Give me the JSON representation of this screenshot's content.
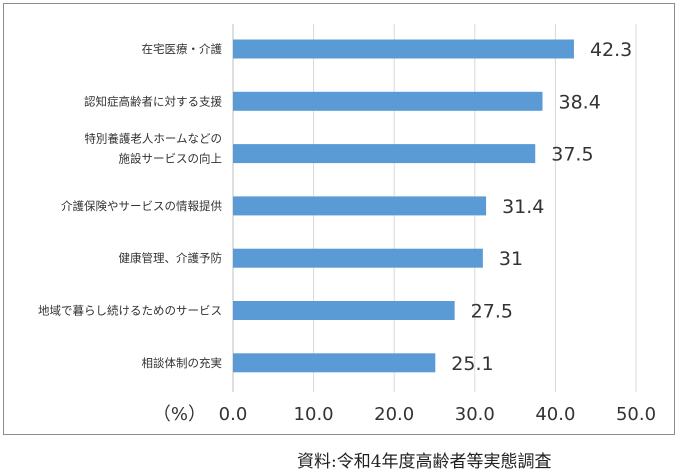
{
  "chart_data": {
    "type": "bar",
    "orientation": "horizontal",
    "categories": [
      [
        "在宅医療・介護"
      ],
      [
        "認知症高齢者に対する支援"
      ],
      [
        "特別養護老人ホームなどの",
        "施設サービスの向上"
      ],
      [
        "介護保険やサービスの情報提供"
      ],
      [
        "健康管理、介護予防"
      ],
      [
        "地域で暮らし続けるためのサービス"
      ],
      [
        "相談体制の充実"
      ]
    ],
    "values": [
      42.3,
      38.4,
      37.5,
      31.4,
      31,
      27.5,
      25.1
    ],
    "value_labels": [
      "42.3",
      "38.4",
      "37.5",
      "31.4",
      "31",
      "27.5",
      "25.1"
    ],
    "x_ticks": [
      "0.0",
      "10.0",
      "20.0",
      "30.0",
      "40.0",
      "50.0"
    ],
    "xlim": [
      0,
      50
    ],
    "x_unit_label": "（%）",
    "bar_color": "#5b9bd5",
    "grid": true
  },
  "source_note": "資料:令和4年度高齢者等実態調査"
}
